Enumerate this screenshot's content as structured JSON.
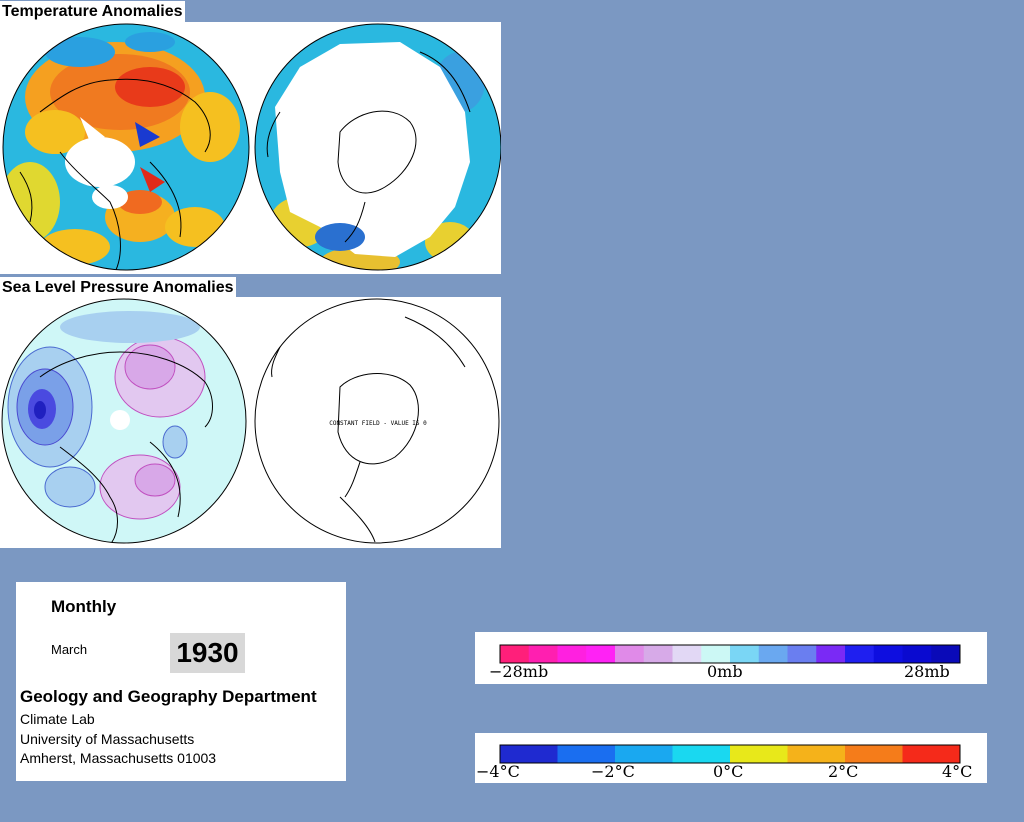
{
  "sections": {
    "temperature_title": "Temperature Anomalies",
    "pressure_title": "Sea Level Pressure Anomalies"
  },
  "maps": {
    "slp_south_annotation": "CONSTANT FIELD - VALUE IS 0"
  },
  "info": {
    "frequency": "Monthly",
    "month": "March",
    "year": "1930",
    "department": "Geology and Geography Department",
    "lab": "Climate Lab",
    "university": "University of Massachusetts",
    "address": "Amherst, Massachusetts 01003"
  },
  "legends": {
    "pressure": {
      "min_label": "−28mb",
      "mid_label": "0mb",
      "max_label": "28mb",
      "colors": [
        "#ff1f7a",
        "#ff1fb0",
        "#ff20e0",
        "#ff22f5",
        "#e08ae8",
        "#d7aae8",
        "#e2d8f5",
        "#ccf8f5",
        "#7ad6f5",
        "#6aa8f0",
        "#6a7ef0",
        "#7a2af5",
        "#1f1ff0",
        "#0e0ee0",
        "#0a0ad0",
        "#0a0ab8"
      ]
    },
    "temperature": {
      "min_label": "−4°C",
      "label_m2": "−2°C",
      "mid_label": "0°C",
      "label_p2": "2°C",
      "max_label": "4°C",
      "colors": [
        "#1f2ad0",
        "#1a6ef0",
        "#1aa8f0",
        "#1ad8f0",
        "#e8e81a",
        "#f5b21a",
        "#f57c1a",
        "#f52a1a"
      ]
    }
  }
}
